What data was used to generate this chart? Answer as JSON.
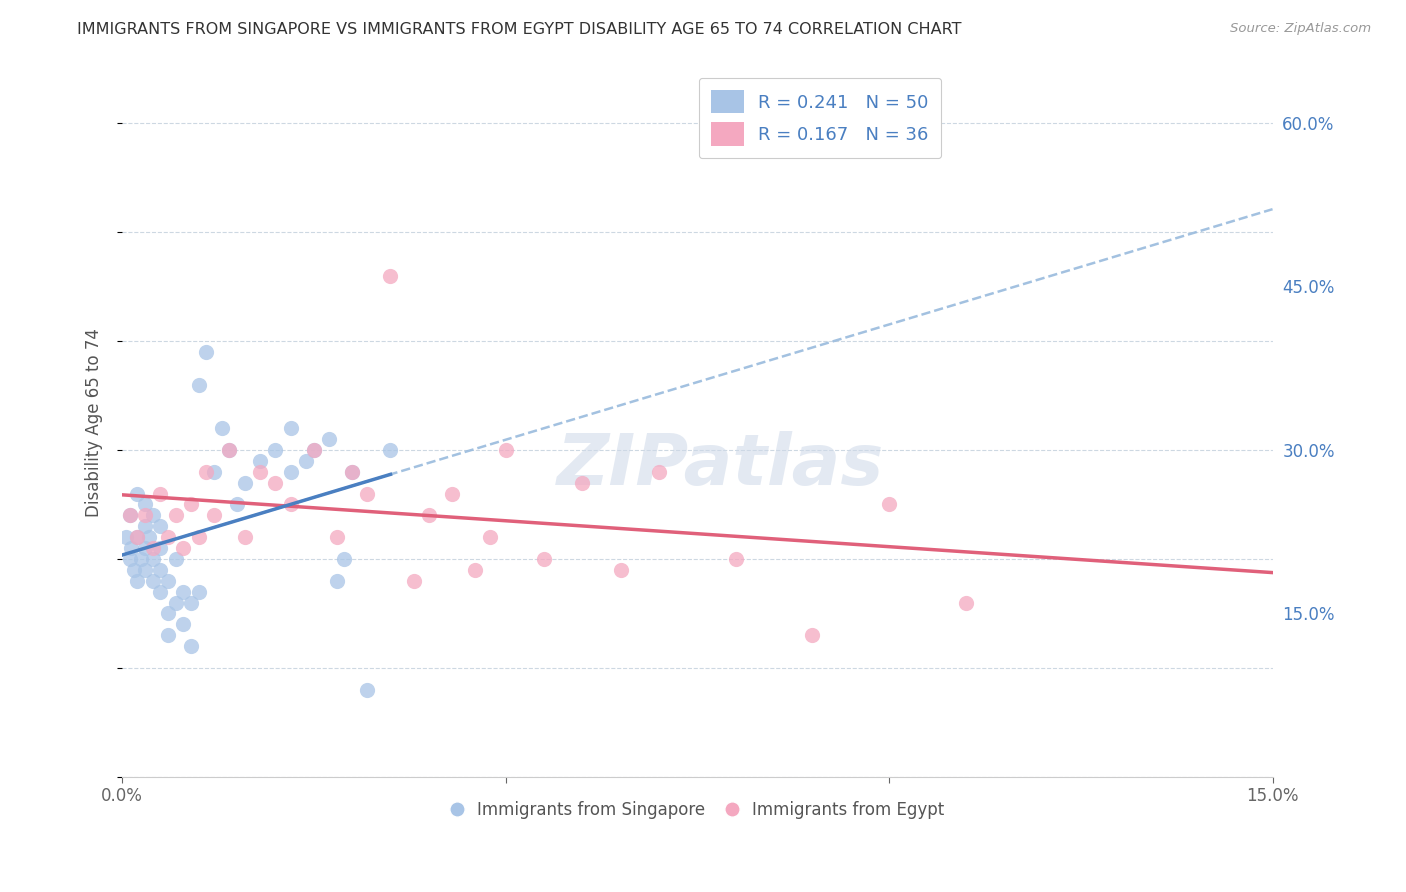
{
  "title": "IMMIGRANTS FROM SINGAPORE VS IMMIGRANTS FROM EGYPT DISABILITY AGE 65 TO 74 CORRELATION CHART",
  "source": "Source: ZipAtlas.com",
  "ylabel": "Disability Age 65 to 74",
  "xmin": 0.0,
  "xmax": 0.15,
  "ymin": 0.0,
  "ymax": 0.65,
  "singapore_color": "#a8c4e6",
  "egypt_color": "#f4a8c0",
  "singapore_line_color": "#4a7fc1",
  "egypt_line_color": "#e0607a",
  "dashed_line_color": "#99bbdd",
  "R_singapore": 0.241,
  "N_singapore": 50,
  "R_egypt": 0.167,
  "N_egypt": 36,
  "legend_text_color": "#4a7fc1",
  "title_color": "#333333",
  "background_color": "#ffffff",
  "grid_color": "#c8d4df",
  "singapore_scatter_x": [
    0.0005,
    0.001,
    0.001,
    0.0012,
    0.0015,
    0.002,
    0.002,
    0.002,
    0.0025,
    0.003,
    0.003,
    0.003,
    0.003,
    0.0035,
    0.004,
    0.004,
    0.004,
    0.005,
    0.005,
    0.005,
    0.005,
    0.006,
    0.006,
    0.006,
    0.007,
    0.007,
    0.008,
    0.008,
    0.009,
    0.009,
    0.01,
    0.01,
    0.011,
    0.012,
    0.013,
    0.014,
    0.015,
    0.016,
    0.018,
    0.02,
    0.022,
    0.022,
    0.024,
    0.025,
    0.027,
    0.028,
    0.029,
    0.03,
    0.032,
    0.035
  ],
  "singapore_scatter_y": [
    0.22,
    0.2,
    0.24,
    0.21,
    0.19,
    0.18,
    0.22,
    0.26,
    0.2,
    0.21,
    0.23,
    0.19,
    0.25,
    0.22,
    0.2,
    0.18,
    0.24,
    0.17,
    0.21,
    0.23,
    0.19,
    0.15,
    0.13,
    0.18,
    0.16,
    0.2,
    0.14,
    0.17,
    0.12,
    0.16,
    0.17,
    0.36,
    0.39,
    0.28,
    0.32,
    0.3,
    0.25,
    0.27,
    0.29,
    0.3,
    0.28,
    0.32,
    0.29,
    0.3,
    0.31,
    0.18,
    0.2,
    0.28,
    0.08,
    0.3
  ],
  "egypt_scatter_x": [
    0.001,
    0.002,
    0.003,
    0.004,
    0.005,
    0.006,
    0.007,
    0.008,
    0.009,
    0.01,
    0.011,
    0.012,
    0.014,
    0.016,
    0.018,
    0.02,
    0.022,
    0.025,
    0.028,
    0.03,
    0.032,
    0.035,
    0.038,
    0.04,
    0.043,
    0.046,
    0.048,
    0.05,
    0.055,
    0.06,
    0.065,
    0.07,
    0.08,
    0.09,
    0.1,
    0.11
  ],
  "egypt_scatter_y": [
    0.24,
    0.22,
    0.24,
    0.21,
    0.26,
    0.22,
    0.24,
    0.21,
    0.25,
    0.22,
    0.28,
    0.24,
    0.3,
    0.22,
    0.28,
    0.27,
    0.25,
    0.3,
    0.22,
    0.28,
    0.26,
    0.46,
    0.18,
    0.24,
    0.26,
    0.19,
    0.22,
    0.3,
    0.2,
    0.27,
    0.19,
    0.28,
    0.2,
    0.13,
    0.25,
    0.16
  ]
}
